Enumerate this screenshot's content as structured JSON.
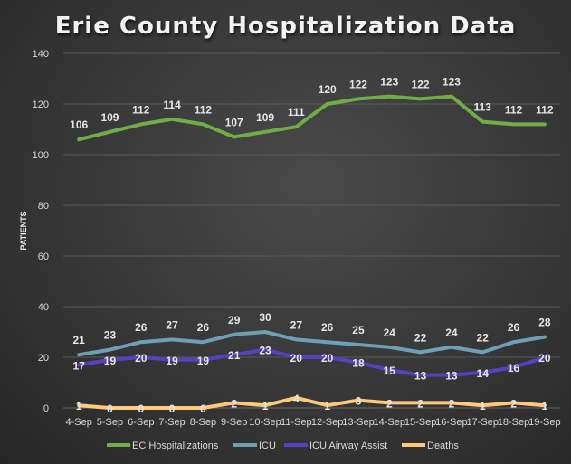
{
  "chart_data": {
    "type": "line",
    "title": "Erie County Hospitalization Data",
    "xlabel": "",
    "ylabel": "PATIENTS",
    "ylim": [
      0,
      140
    ],
    "yticks": [
      0,
      20,
      40,
      60,
      80,
      100,
      120,
      140
    ],
    "grid": true,
    "legend_position": "bottom",
    "categories": [
      "4-Sep",
      "5-Sep",
      "6-Sep",
      "7-Sep",
      "8-Sep",
      "9-Sep",
      "10-Sep",
      "11-Sep",
      "12-Sep",
      "13-Sep",
      "14-Sep",
      "15-Sep",
      "16-Sep",
      "17-Sep",
      "18-Sep",
      "19-Sep"
    ],
    "series": [
      {
        "name": "EC Hospitalizations",
        "color": "#70ad47",
        "values": [
          106,
          109,
          112,
          114,
          112,
          107,
          109,
          111,
          120,
          122,
          123,
          122,
          123,
          113,
          112,
          112
        ]
      },
      {
        "name": "ICU",
        "color": "#6f9fb4",
        "values": [
          21,
          23,
          26,
          27,
          26,
          29,
          30,
          27,
          26,
          25,
          24,
          22,
          24,
          22,
          26,
          28
        ]
      },
      {
        "name": "ICU Airway Assist",
        "color": "#5a3fc0",
        "values": [
          17,
          19,
          20,
          19,
          19,
          21,
          23,
          20,
          20,
          18,
          15,
          13,
          13,
          14,
          16,
          20
        ]
      },
      {
        "name": "Deaths",
        "color": "#ffc97a",
        "values": [
          1,
          0,
          0,
          0,
          0,
          2,
          1,
          4,
          1,
          3,
          2,
          2,
          2,
          1,
          2,
          1
        ]
      }
    ]
  }
}
